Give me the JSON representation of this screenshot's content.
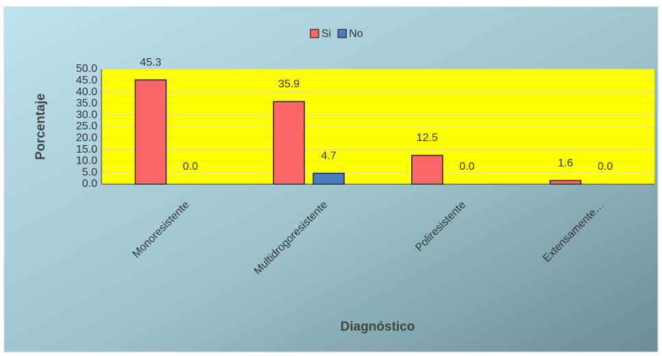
{
  "chart_data": {
    "type": "bar",
    "x_label": "Diagnóstico",
    "y_label": "Porcentaje",
    "categories": [
      "Monoresistente",
      "Multidrogoresistente",
      "Poliresistente",
      "Extensamente…"
    ],
    "series": [
      {
        "name": "Si",
        "color": "#fb6767",
        "values": [
          45.3,
          35.9,
          12.5,
          1.6
        ],
        "value_labels": [
          "45.3",
          "35.9",
          "12.5",
          "1.6"
        ]
      },
      {
        "name": "No",
        "color": "#4a7cc0",
        "values": [
          0,
          4.7,
          0,
          0
        ],
        "value_labels": [
          "0.0",
          "4.7",
          "0.0",
          "0.0"
        ]
      }
    ],
    "ylim": [
      0,
      50
    ],
    "yticks": [
      {
        "value": 0,
        "label": "0.0"
      },
      {
        "value": 5,
        "label": "5.0"
      },
      {
        "value": 10,
        "label": "10.0"
      },
      {
        "value": 15,
        "label": "15.0"
      },
      {
        "value": 20,
        "label": "20.0"
      },
      {
        "value": 25,
        "label": "25.0"
      },
      {
        "value": 30,
        "label": "30.0"
      },
      {
        "value": 35,
        "label": "35.0"
      },
      {
        "value": 40,
        "label": "40.0"
      },
      {
        "value": 45,
        "label": "45.0"
      },
      {
        "value": 50,
        "label": "50.0"
      }
    ],
    "grid": true,
    "plot_background": "#ffff00",
    "legend": "top"
  }
}
